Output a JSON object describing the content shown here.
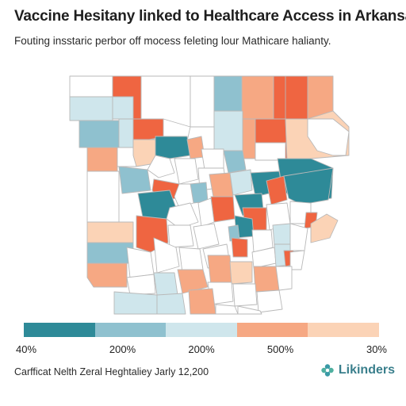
{
  "header": {
    "title": "Vaccine Hesitany linked to Healthcare Access in Arkansas",
    "subtitle": "Fouting insstaric perbor off mocess feleting lour Mathicare halianty."
  },
  "colors": {
    "dark_teal": "#2e8a98",
    "mid_teal": "#8fc1cf",
    "light_teal": "#cfe6ec",
    "white": "#ffffff",
    "light_peach": "#fbd3b6",
    "peach": "#f6a883",
    "orange_red": "#ef6541",
    "border": "#b9b9b9"
  },
  "legend": {
    "swatch_colors": [
      "#2e8a98",
      "#8fc1cf",
      "#cfe6ec",
      "#f6a883",
      "#fbd3b6"
    ],
    "labels": [
      "40%",
      "200%",
      "200%",
      "500%",
      "30%"
    ]
  },
  "footer": {
    "source": "Carfficat Nelth Zeral Heghtaliey Jarly 12,200",
    "brand": "Likinders",
    "brand_icon": "flower-icon"
  }
}
